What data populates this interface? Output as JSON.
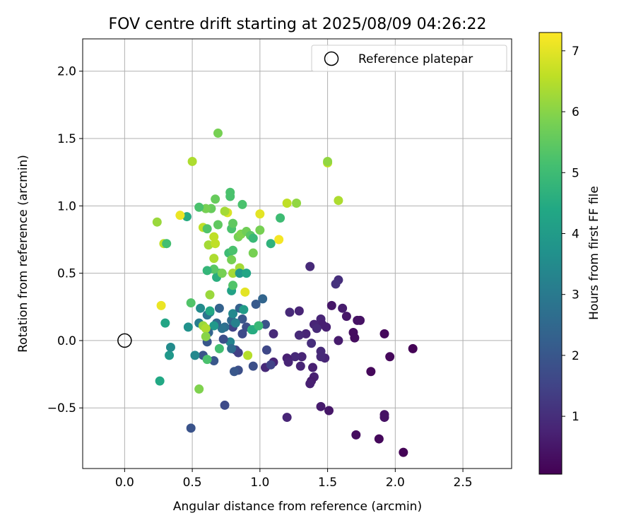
{
  "chart_data": {
    "type": "scatter",
    "title": "FOV centre drift starting at 2025/08/09 04:26:22",
    "xlabel": "Angular distance from reference (arcmin)",
    "ylabel": "Rotation from reference (arcmin)",
    "xlim": [
      -0.31,
      2.86
    ],
    "ylim": [
      -0.95,
      2.24
    ],
    "xticks": [
      0.0,
      0.5,
      1.0,
      1.5,
      2.0,
      2.5
    ],
    "xtick_labels": [
      "0.0",
      "0.5",
      "1.0",
      "1.5",
      "2.0",
      "2.5"
    ],
    "yticks": [
      -0.5,
      0.0,
      0.5,
      1.0,
      1.5,
      2.0
    ],
    "ytick_labels": [
      "−0.5",
      "0.0",
      "0.5",
      "1.0",
      "1.5",
      "2.0"
    ],
    "grid": true,
    "legend": {
      "position": "top-right",
      "entries": [
        "Reference platepar"
      ]
    },
    "reference_point": {
      "x": 0.0,
      "y": 0.0,
      "label": "Reference platepar"
    },
    "colorbar": {
      "label": "Hours from first FF file",
      "colormap": "viridis",
      "range": [
        0.05,
        7.3
      ],
      "ticks": [
        1,
        2,
        3,
        4,
        5,
        6,
        7
      ],
      "tick_labels": [
        "1",
        "2",
        "3",
        "4",
        "5",
        "6",
        "7"
      ]
    },
    "points": [
      [
        2.06,
        -0.83,
        0.1
      ],
      [
        1.88,
        -0.73,
        0.2
      ],
      [
        1.71,
        -0.7,
        0.3
      ],
      [
        1.92,
        -0.57,
        0.4
      ],
      [
        1.92,
        -0.55,
        0.4
      ],
      [
        1.51,
        -0.52,
        0.5
      ],
      [
        1.45,
        -0.49,
        0.6
      ],
      [
        1.82,
        -0.23,
        0.2
      ],
      [
        2.13,
        -0.06,
        0.1
      ],
      [
        1.96,
        -0.12,
        0.2
      ],
      [
        1.92,
        0.05,
        0.2
      ],
      [
        1.69,
        0.06,
        0.3
      ],
      [
        1.7,
        0.02,
        0.3
      ],
      [
        1.72,
        0.15,
        0.4
      ],
      [
        1.74,
        0.15,
        0.4
      ],
      [
        1.64,
        0.18,
        0.5
      ],
      [
        1.61,
        0.24,
        0.6
      ],
      [
        1.53,
        0.26,
        0.5
      ],
      [
        1.58,
        0.0,
        0.6
      ],
      [
        1.49,
        0.1,
        0.7
      ],
      [
        1.45,
        0.16,
        0.8
      ],
      [
        1.46,
        0.12,
        0.7
      ],
      [
        1.4,
        0.12,
        0.8
      ],
      [
        1.42,
        0.09,
        0.9
      ],
      [
        1.34,
        0.05,
        0.8
      ],
      [
        1.29,
        0.04,
        0.9
      ],
      [
        1.29,
        0.22,
        0.8
      ],
      [
        1.22,
        0.21,
        0.9
      ],
      [
        1.38,
        -0.02,
        1.0
      ],
      [
        1.45,
        -0.08,
        0.9
      ],
      [
        1.48,
        -0.13,
        0.8
      ],
      [
        1.45,
        -0.12,
        0.9
      ],
      [
        1.31,
        -0.12,
        0.8
      ],
      [
        1.26,
        -0.12,
        0.9
      ],
      [
        1.2,
        -0.13,
        0.7
      ],
      [
        1.21,
        -0.16,
        0.8
      ],
      [
        1.3,
        -0.19,
        0.8
      ],
      [
        1.39,
        -0.2,
        0.7
      ],
      [
        1.4,
        -0.27,
        0.7
      ],
      [
        1.38,
        -0.3,
        0.6
      ],
      [
        1.37,
        -0.32,
        0.7
      ],
      [
        1.2,
        -0.57,
        0.8
      ],
      [
        1.37,
        0.55,
        0.9
      ],
      [
        1.58,
        0.45,
        1.0
      ],
      [
        1.56,
        0.42,
        1.1
      ],
      [
        1.1,
        0.05,
        0.9
      ],
      [
        1.1,
        -0.16,
        0.8
      ],
      [
        1.04,
        -0.2,
        0.9
      ],
      [
        1.08,
        -0.18,
        1.5
      ],
      [
        1.05,
        -0.07,
        1.6
      ],
      [
        1.02,
        0.31,
        2.4
      ],
      [
        1.04,
        0.12,
        1.9
      ],
      [
        0.97,
        0.27,
        2.1
      ],
      [
        0.95,
        -0.19,
        1.8
      ],
      [
        0.87,
        0.16,
        2.0
      ],
      [
        0.9,
        0.1,
        1.8
      ],
      [
        0.87,
        0.05,
        1.7
      ],
      [
        0.82,
        -0.07,
        1.5
      ],
      [
        0.84,
        -0.09,
        1.4
      ],
      [
        0.84,
        -0.22,
        1.8
      ],
      [
        0.81,
        -0.23,
        2.0
      ],
      [
        0.8,
        0.1,
        1.5
      ],
      [
        0.79,
        0.15,
        2.5
      ],
      [
        0.82,
        0.13,
        3.2
      ],
      [
        0.8,
        0.2,
        3.4
      ],
      [
        0.85,
        0.24,
        2.3
      ],
      [
        0.88,
        0.23,
        4.0
      ],
      [
        0.78,
        -0.01,
        3.3
      ],
      [
        0.79,
        -0.06,
        2.6
      ],
      [
        0.74,
        0.1,
        2.6
      ],
      [
        0.72,
        0.09,
        2.8
      ],
      [
        0.73,
        0.01,
        1.8
      ],
      [
        0.7,
        0.24,
        2.3
      ],
      [
        0.68,
        0.13,
        2.5
      ],
      [
        0.66,
        0.11,
        3.9
      ],
      [
        0.66,
        -0.15,
        2.0
      ],
      [
        0.62,
        0.06,
        2.4
      ],
      [
        0.61,
        -0.01,
        2.0
      ],
      [
        0.58,
        -0.11,
        1.9
      ],
      [
        0.52,
        -0.11,
        3.4
      ],
      [
        0.55,
        0.13,
        3.1
      ],
      [
        0.47,
        0.1,
        3.7
      ],
      [
        0.63,
        0.21,
        3.3
      ],
      [
        0.61,
        0.19,
        2.8
      ],
      [
        0.63,
        0.22,
        4.4
      ],
      [
        0.56,
        0.24,
        3.5
      ],
      [
        0.49,
        0.28,
        5.3
      ],
      [
        0.58,
        0.11,
        6.2
      ],
      [
        0.6,
        0.09,
        6.4
      ],
      [
        0.6,
        0.03,
        6.0
      ],
      [
        0.61,
        -0.14,
        5.2
      ],
      [
        0.7,
        -0.06,
        5.1
      ],
      [
        0.55,
        -0.36,
        5.9
      ],
      [
        0.26,
        -0.3,
        4.4
      ],
      [
        0.33,
        -0.11,
        3.9
      ],
      [
        0.34,
        -0.05,
        3.5
      ],
      [
        0.3,
        0.13,
        4.3
      ],
      [
        0.27,
        0.26,
        7.1
      ],
      [
        0.74,
        -0.48,
        1.7
      ],
      [
        0.49,
        -0.65,
        1.9
      ],
      [
        0.94,
        0.08,
        4.7
      ],
      [
        0.95,
        0.08,
        4.5
      ],
      [
        0.99,
        0.11,
        4.9
      ],
      [
        0.91,
        -0.11,
        6.5
      ],
      [
        0.79,
        0.37,
        4.2
      ],
      [
        0.8,
        0.41,
        5.3
      ],
      [
        0.7,
        0.5,
        5.0
      ],
      [
        0.68,
        0.47,
        4.6
      ],
      [
        0.72,
        0.5,
        5.8
      ],
      [
        0.66,
        0.53,
        5.4
      ],
      [
        0.61,
        0.52,
        4.8
      ],
      [
        0.8,
        0.5,
        6.3
      ],
      [
        0.85,
        0.54,
        6.3
      ],
      [
        0.85,
        0.5,
        3.9
      ],
      [
        0.9,
        0.5,
        4.3
      ],
      [
        0.63,
        0.34,
        6.2
      ],
      [
        0.66,
        0.61,
        6.4
      ],
      [
        0.77,
        0.65,
        5.0
      ],
      [
        0.8,
        0.67,
        5.2
      ],
      [
        0.79,
        0.6,
        5.8
      ],
      [
        0.62,
        0.71,
        6.3
      ],
      [
        0.67,
        0.72,
        6.6
      ],
      [
        0.66,
        0.77,
        6.6
      ],
      [
        0.58,
        0.84,
        6.6
      ],
      [
        0.61,
        0.83,
        5.3
      ],
      [
        0.69,
        0.86,
        5.5
      ],
      [
        0.79,
        0.83,
        5.2
      ],
      [
        0.8,
        0.87,
        5.5
      ],
      [
        0.76,
        0.95,
        6.9
      ],
      [
        0.84,
        0.77,
        5.8
      ],
      [
        0.86,
        0.79,
        5.9
      ],
      [
        0.9,
        0.81,
        5.7
      ],
      [
        0.93,
        0.78,
        5.4
      ],
      [
        0.95,
        0.76,
        4.9
      ],
      [
        0.95,
        0.65,
        5.8
      ],
      [
        1.0,
        0.82,
        5.8
      ],
      [
        1.08,
        0.72,
        4.7
      ],
      [
        1.14,
        0.75,
        7.2
      ],
      [
        1.15,
        0.91,
        5.0
      ],
      [
        1.0,
        0.94,
        7.0
      ],
      [
        0.87,
        1.01,
        5.2
      ],
      [
        0.78,
        1.07,
        5.2
      ],
      [
        0.78,
        1.1,
        5.2
      ],
      [
        0.74,
        0.96,
        6.3
      ],
      [
        0.64,
        0.98,
        5.6
      ],
      [
        0.6,
        0.98,
        5.8
      ],
      [
        0.55,
        0.99,
        5.2
      ],
      [
        0.67,
        1.05,
        5.6
      ],
      [
        0.46,
        0.92,
        4.5
      ],
      [
        0.41,
        0.93,
        7.1
      ],
      [
        0.24,
        0.88,
        6.2
      ],
      [
        0.29,
        0.72,
        6.6
      ],
      [
        0.31,
        0.72,
        5.1
      ],
      [
        0.5,
        1.33,
        6.4
      ],
      [
        0.69,
        1.54,
        5.8
      ],
      [
        1.2,
        1.02,
        6.6
      ],
      [
        1.27,
        1.02,
        6.1
      ],
      [
        1.5,
        1.32,
        6.6
      ],
      [
        1.58,
        1.04,
        6.4
      ],
      [
        0.89,
        0.36,
        7.0
      ],
      [
        1.5,
        1.33,
        6.1
      ]
    ]
  }
}
